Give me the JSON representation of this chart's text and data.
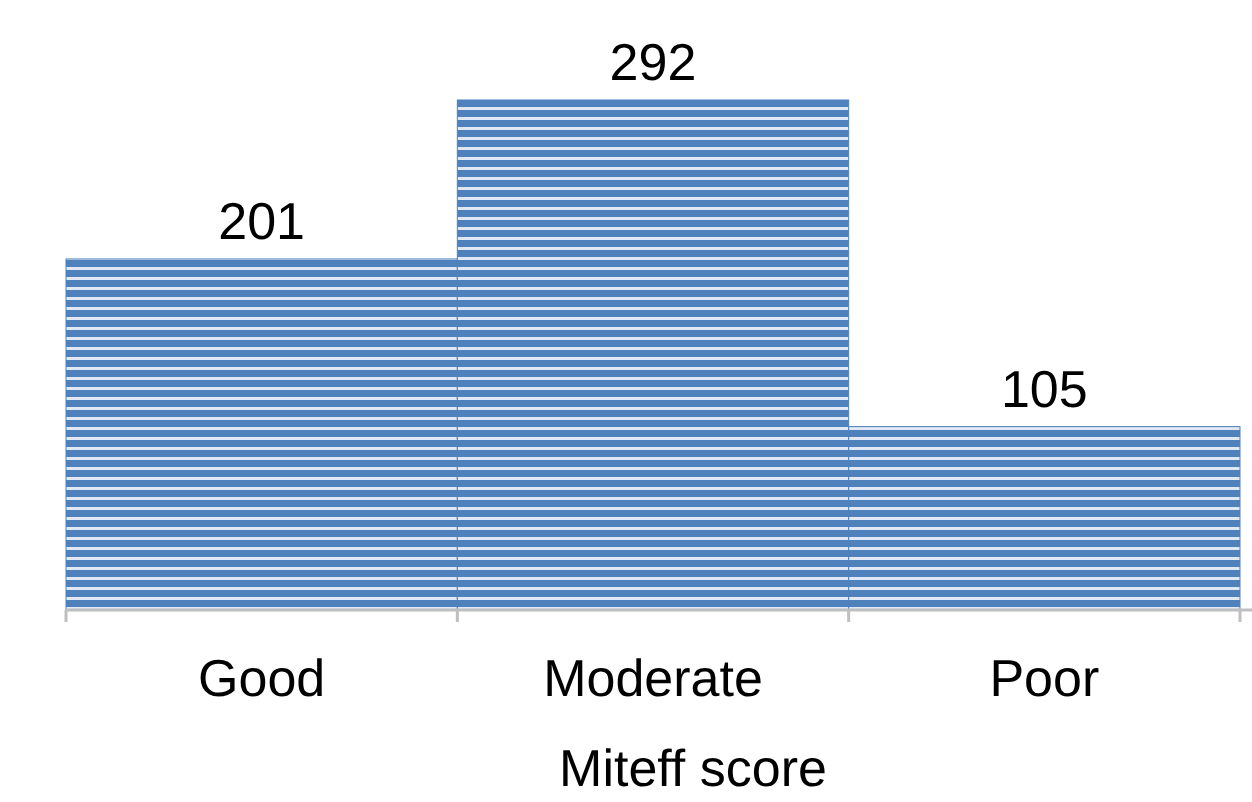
{
  "chart_data": {
    "type": "bar",
    "xlabel": "Miteff score",
    "categories": [
      "Good",
      "Moderate",
      "Poor"
    ],
    "values": [
      201,
      292,
      105
    ],
    "color": "#4f81bd",
    "data_labels": true
  }
}
